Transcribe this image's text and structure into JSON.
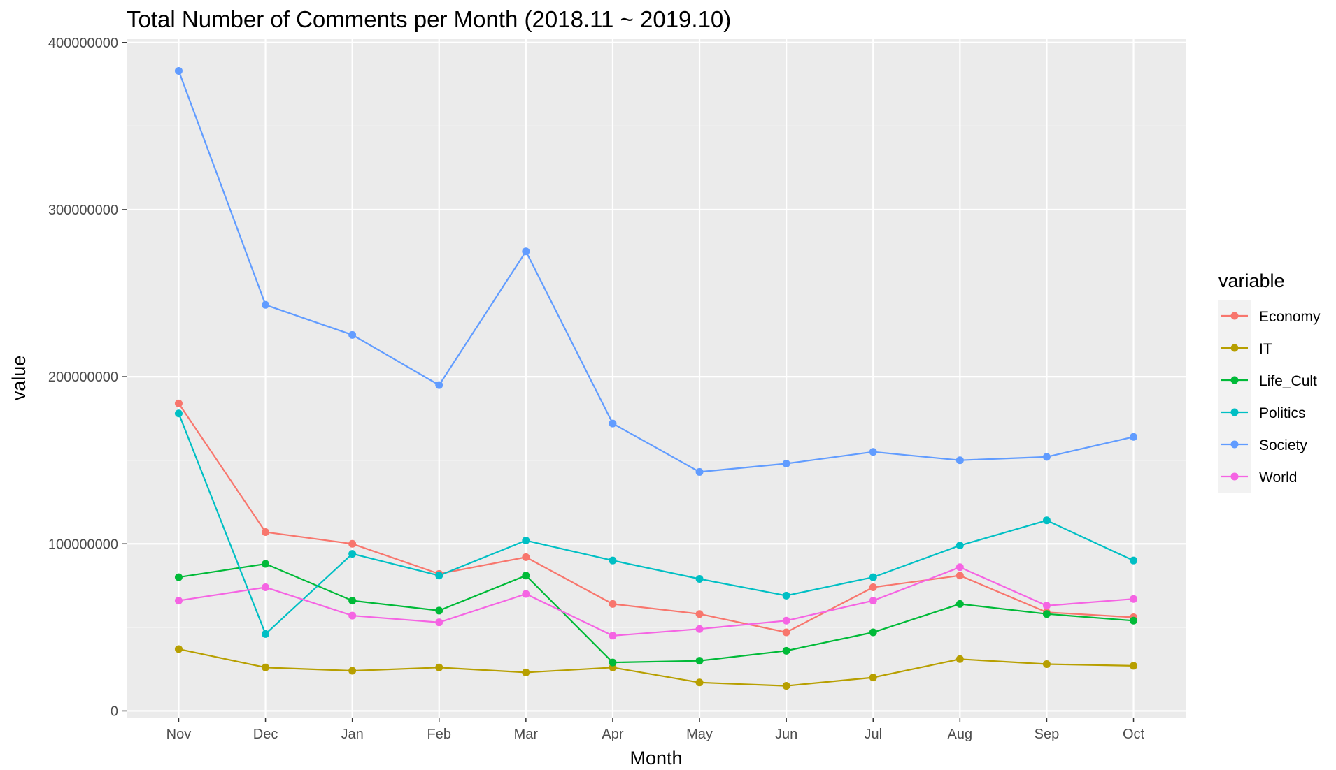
{
  "chart_data": {
    "type": "line",
    "title": "Total Number of Comments per Month (2018.11 ~ 2019.10)",
    "xlabel": "Month",
    "ylabel": "value",
    "categories": [
      "Nov",
      "Dec",
      "Jan",
      "Feb",
      "Mar",
      "Apr",
      "May",
      "Jun",
      "Jul",
      "Aug",
      "Sep",
      "Oct"
    ],
    "ylim": [
      -4000000,
      402000000
    ],
    "yticks": [
      0,
      100000000,
      200000000,
      300000000,
      400000000
    ],
    "ytick_labels": [
      "0",
      "100000000",
      "200000000",
      "300000000",
      "400000000"
    ],
    "grid": true,
    "legend": {
      "title": "variable",
      "position": "right"
    },
    "series": [
      {
        "name": "Economy",
        "color": "#F8766D",
        "values": [
          184000000,
          107000000,
          100000000,
          82000000,
          92000000,
          64000000,
          58000000,
          47000000,
          74000000,
          81000000,
          59000000,
          56000000
        ]
      },
      {
        "name": "IT",
        "color": "#B79F00",
        "values": [
          37000000,
          26000000,
          24000000,
          26000000,
          23000000,
          26000000,
          17000000,
          15000000,
          20000000,
          31000000,
          28000000,
          27000000
        ]
      },
      {
        "name": "Life_Cult",
        "color": "#00BA38",
        "values": [
          80000000,
          88000000,
          66000000,
          60000000,
          81000000,
          29000000,
          30000000,
          36000000,
          47000000,
          64000000,
          58000000,
          54000000
        ]
      },
      {
        "name": "Politics",
        "color": "#00BFC4",
        "values": [
          178000000,
          46000000,
          94000000,
          81000000,
          102000000,
          90000000,
          79000000,
          69000000,
          80000000,
          99000000,
          114000000,
          90000000
        ]
      },
      {
        "name": "Society",
        "color": "#619CFF",
        "values": [
          383000000,
          243000000,
          225000000,
          195000000,
          275000000,
          172000000,
          143000000,
          148000000,
          155000000,
          150000000,
          152000000,
          164000000
        ]
      },
      {
        "name": "World",
        "color": "#F564E3",
        "values": [
          66000000,
          74000000,
          57000000,
          53000000,
          70000000,
          45000000,
          49000000,
          54000000,
          66000000,
          86000000,
          63000000,
          67000000
        ]
      }
    ]
  }
}
